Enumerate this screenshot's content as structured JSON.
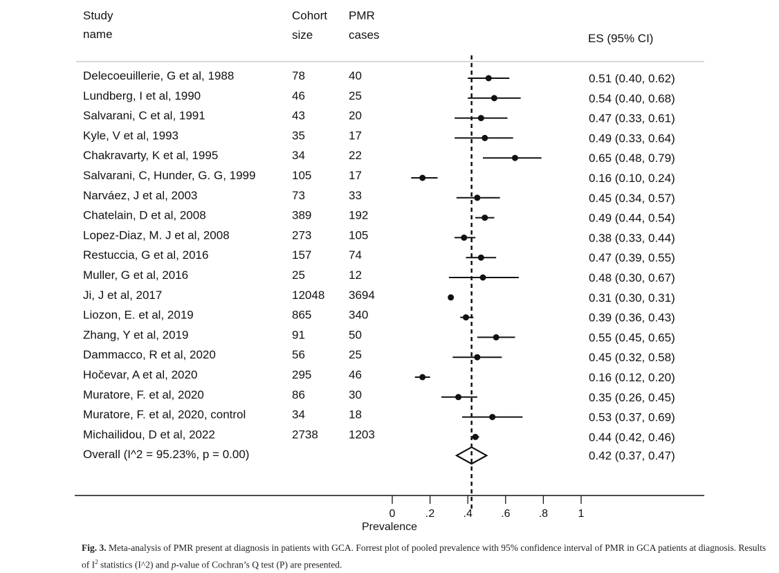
{
  "headers": {
    "study_line1": "Study",
    "study_line2": "name",
    "cohort_line1": "Cohort",
    "cohort_line2": "size",
    "pmr_line1": "PMR",
    "pmr_line2": "cases",
    "es": "ES (95% CI)"
  },
  "chart_data": {
    "type": "forest",
    "xlabel": "Prevalence",
    "xlim": [
      0,
      1
    ],
    "xticks": [
      0,
      0.2,
      0.4,
      0.6,
      0.8,
      1
    ],
    "xtick_labels": [
      "0",
      ".2",
      ".4",
      ".6",
      ".8",
      "1"
    ],
    "reference_line": 0.42,
    "studies": [
      {
        "name": "Delecoeuillerie, G et al, 1988",
        "cohort": "78",
        "cases": "40",
        "es": 0.51,
        "lo": 0.4,
        "hi": 0.62,
        "label": "0.51 (0.40, 0.62)"
      },
      {
        "name": "Lundberg, I et al, 1990",
        "cohort": "46",
        "cases": "25",
        "es": 0.54,
        "lo": 0.4,
        "hi": 0.68,
        "label": "0.54 (0.40, 0.68)"
      },
      {
        "name": "Salvarani, C et al, 1991",
        "cohort": "43",
        "cases": "20",
        "es": 0.47,
        "lo": 0.33,
        "hi": 0.61,
        "label": "0.47 (0.33, 0.61)"
      },
      {
        "name": "Kyle, V et al, 1993",
        "cohort": "35",
        "cases": "17",
        "es": 0.49,
        "lo": 0.33,
        "hi": 0.64,
        "label": "0.49 (0.33, 0.64)"
      },
      {
        "name": "Chakravarty, K et al, 1995",
        "cohort": "34",
        "cases": "22",
        "es": 0.65,
        "lo": 0.48,
        "hi": 0.79,
        "label": "0.65 (0.48, 0.79)"
      },
      {
        "name": "Salvarani, C, Hunder, G. G, 1999",
        "cohort": "105",
        "cases": "17",
        "es": 0.16,
        "lo": 0.1,
        "hi": 0.24,
        "label": "0.16 (0.10, 0.24)"
      },
      {
        "name": "Narváez, J et al, 2003",
        "cohort": "73",
        "cases": "33",
        "es": 0.45,
        "lo": 0.34,
        "hi": 0.57,
        "label": "0.45 (0.34, 0.57)"
      },
      {
        "name": "Chatelain, D et al, 2008",
        "cohort": "389",
        "cases": "192",
        "es": 0.49,
        "lo": 0.44,
        "hi": 0.54,
        "label": "0.49 (0.44, 0.54)"
      },
      {
        "name": "Lopez-Diaz, M. J et al, 2008",
        "cohort": "273",
        "cases": "105",
        "es": 0.38,
        "lo": 0.33,
        "hi": 0.44,
        "label": "0.38 (0.33, 0.44)"
      },
      {
        "name": "Restuccia, G et al, 2016",
        "cohort": "157",
        "cases": "74",
        "es": 0.47,
        "lo": 0.39,
        "hi": 0.55,
        "label": "0.47 (0.39, 0.55)"
      },
      {
        "name": "Muller, G et al, 2016",
        "cohort": "25",
        "cases": "12",
        "es": 0.48,
        "lo": 0.3,
        "hi": 0.67,
        "label": "0.48 (0.30, 0.67)"
      },
      {
        "name": "Ji, J et al, 2017",
        "cohort": "12048",
        "cases": "3694",
        "es": 0.31,
        "lo": 0.3,
        "hi": 0.31,
        "label": "0.31 (0.30, 0.31)"
      },
      {
        "name": "Liozon, E. et al, 2019",
        "cohort": "865",
        "cases": "340",
        "es": 0.39,
        "lo": 0.36,
        "hi": 0.43,
        "label": "0.39 (0.36, 0.43)"
      },
      {
        "name": "Zhang, Y et al, 2019",
        "cohort": "91",
        "cases": "50",
        "es": 0.55,
        "lo": 0.45,
        "hi": 0.65,
        "label": "0.55 (0.45, 0.65)"
      },
      {
        "name": "Dammacco, R et al, 2020",
        "cohort": "56",
        "cases": "25",
        "es": 0.45,
        "lo": 0.32,
        "hi": 0.58,
        "label": "0.45 (0.32, 0.58)"
      },
      {
        "name": "Hočevar, A et al, 2020",
        "cohort": "295",
        "cases": "46",
        "es": 0.16,
        "lo": 0.12,
        "hi": 0.2,
        "label": "0.16 (0.12, 0.20)"
      },
      {
        "name": "Muratore, F. et al, 2020",
        "cohort": "86",
        "cases": "30",
        "es": 0.35,
        "lo": 0.26,
        "hi": 0.45,
        "label": "0.35 (0.26, 0.45)"
      },
      {
        "name": "Muratore, F. et al, 2020, control",
        "cohort": "34",
        "cases": "18",
        "es": 0.53,
        "lo": 0.37,
        "hi": 0.69,
        "label": "0.53 (0.37, 0.69)"
      },
      {
        "name": "Michailidou, D et al, 2022",
        "cohort": "2738",
        "cases": "1203",
        "es": 0.44,
        "lo": 0.42,
        "hi": 0.46,
        "label": "0.44 (0.42, 0.46)"
      }
    ],
    "overall": {
      "name": "Overall  (I^2 = 95.23%, p = 0.00)",
      "es": 0.42,
      "lo": 0.37,
      "hi": 0.47,
      "label": "0.42 (0.37, 0.47)"
    }
  },
  "caption": {
    "label": "Fig. 3.",
    "text_part1": " Meta-analysis of PMR present at diagnosis in patients with GCA. Forrest plot of pooled prevalence with 95% confidence interval of PMR in GCA patients at diagnosis. Results of I",
    "superscript": "2",
    "text_part2": " statistics (I^2) and ",
    "italic": "p",
    "text_part3": "-value of Cochran’s Q test (P) are presented."
  }
}
